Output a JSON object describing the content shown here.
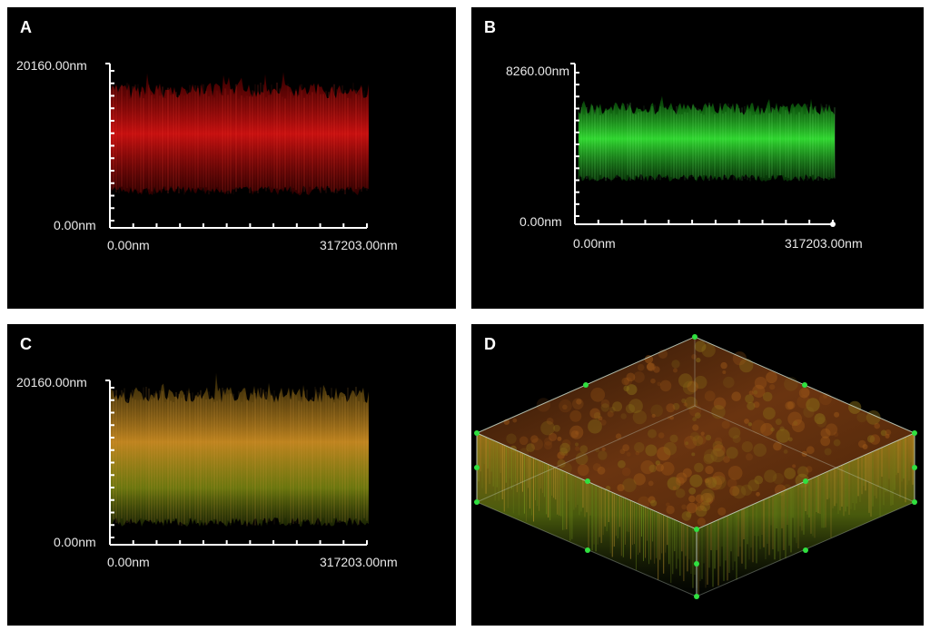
{
  "figure": {
    "panels": [
      {
        "letter": "A",
        "channel_color": "#d01010",
        "y_max_label": "20160.00nm",
        "y_min_label": "0.00nm",
        "x_min_label": "0.00nm",
        "x_max_label": "317203.00nm"
      },
      {
        "letter": "B",
        "channel_color": "#20d020",
        "y_max_label": "8260.00nm",
        "y_min_label": "0.00nm",
        "x_min_label": "0.00nm",
        "x_max_label": "317203.00nm"
      },
      {
        "letter": "C",
        "channel_color": "#c08a20",
        "y_max_label": "20160.00nm",
        "y_min_label": "0.00nm",
        "x_min_label": "0.00nm",
        "x_max_label": "317203.00nm"
      },
      {
        "letter": "D",
        "channel_color": "#b05a10",
        "box_edge_color": "#c8d8c8",
        "marker_color": "#30e040"
      }
    ]
  }
}
